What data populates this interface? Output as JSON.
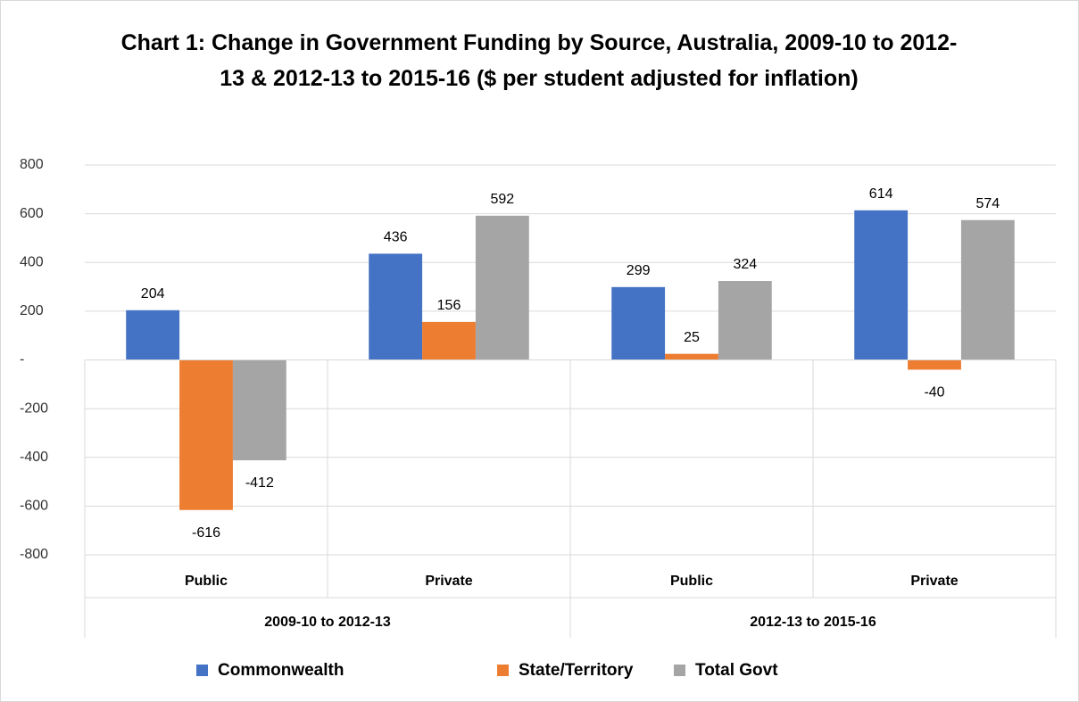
{
  "chart_data": {
    "type": "bar",
    "title": "Chart 1: Change in Government Funding by Source, Australia, 2009-10 to 2012-13 & 2012-13 to 2015-16 ($ per student adjusted for inflation)",
    "categories": [
      "Public",
      "Private",
      "Public",
      "Private"
    ],
    "groups": [
      "2009-10 to 2012-13",
      "2012-13 to 2015-16"
    ],
    "series": [
      {
        "name": "Commonwealth",
        "color": "#4472c4",
        "values": [
          204,
          436,
          299,
          614
        ]
      },
      {
        "name": "State/Territory",
        "color": "#ed7d31",
        "values": [
          -616,
          156,
          25,
          -40
        ]
      },
      {
        "name": "Total Govt",
        "color": "#a5a5a5",
        "values": [
          -412,
          592,
          324,
          574
        ]
      }
    ],
    "ylim": [
      -800,
      800
    ],
    "yticks": [
      -800,
      -600,
      -400,
      -200,
      {
        "value": 0,
        "label": "-"
      },
      200,
      400,
      600,
      800
    ],
    "grid": true,
    "legend": "bottom"
  }
}
